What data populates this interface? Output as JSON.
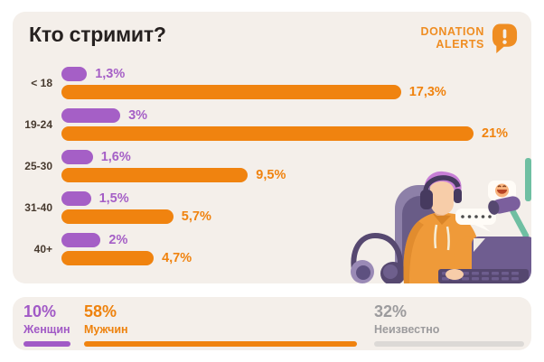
{
  "page": {
    "background": "#ffffff",
    "card_background": "#f4efea"
  },
  "header": {
    "title": "Кто стримит?",
    "logo": {
      "line1": "DONATION",
      "line2": "ALERTS",
      "icon": "donation-alerts-bubble-icon",
      "color": "#ef8d22"
    }
  },
  "chart_data": {
    "type": "bar",
    "orientation": "horizontal",
    "title": "Кто стримит?",
    "categories": [
      "< 18",
      "19-24",
      "25-30",
      "31-40",
      "40+"
    ],
    "series": [
      {
        "name": "Женщины",
        "color": "#a55fc6",
        "values": [
          1.3,
          3,
          1.6,
          1.5,
          2
        ],
        "labels": [
          "1,3%",
          "3%",
          "1,6%",
          "1,5%",
          "2%"
        ]
      },
      {
        "name": "Мужчины",
        "color": "#f0830f",
        "values": [
          17.3,
          21,
          9.5,
          5.7,
          4.7
        ],
        "labels": [
          "17,3%",
          "21%",
          "9,5%",
          "5,7%",
          "4,7%"
        ]
      }
    ],
    "xlim": [
      0,
      21
    ],
    "value_suffix": "%",
    "grid": false,
    "legend_position": "none"
  },
  "summary": {
    "items": [
      {
        "key": "women",
        "value": "10%",
        "label": "Женщин",
        "color": "#a159c6",
        "bar_color": "#a159c6",
        "pct": 10
      },
      {
        "key": "men",
        "value": "58%",
        "label": "Мужчин",
        "color": "#ee820d",
        "bar_color": "#f0830f",
        "pct": 58
      },
      {
        "key": "unknown",
        "value": "32%",
        "label": "Неизвестно",
        "color": "#9c9b9d",
        "bar_color": "#dcd9d6",
        "pct": 32
      }
    ]
  },
  "illustration": {
    "description": "streamer in gaming chair with headphones typing on laptop, chat bubbles, emoji and microphone"
  }
}
